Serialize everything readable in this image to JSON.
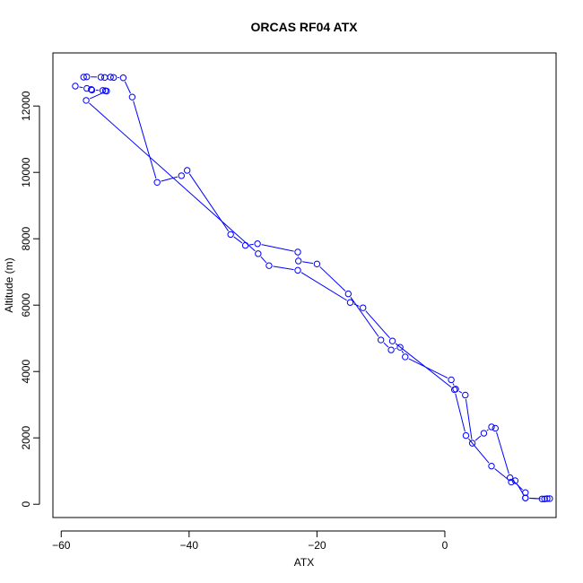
{
  "chart_data": {
    "type": "line",
    "title": "ORCAS RF04 ATX",
    "xlabel": "ATX",
    "ylabel": "Altitude (m)",
    "xlim": [
      -61.3,
      17.4
    ],
    "ylim": [
      -400,
      13600
    ],
    "x_ticks": [
      -60,
      -40,
      -20,
      0
    ],
    "y_ticks": [
      0,
      2000,
      4000,
      6000,
      8000,
      10000,
      12000
    ],
    "x_tick_labels": [
      "−60",
      "−40",
      "−20",
      "0"
    ],
    "y_tick_labels": [
      "0",
      "2000",
      "4000",
      "6000",
      "8000",
      "10000",
      "12000"
    ],
    "grid": false,
    "legend": "none",
    "series_color": "#0000ff",
    "marker": "open-circle",
    "line_style": "solid",
    "series": [
      {
        "x": [
          -56.5,
          -56.0,
          -53.8,
          -53.2,
          -52.3,
          -51.8,
          -50.3,
          -48.9,
          -45.0,
          -41.2,
          -40.3,
          -33.5,
          -31.2,
          -29.3,
          -23.0,
          -22.9,
          -20.0,
          -15.1,
          -10.0,
          -8.4,
          -7.0,
          -6.2,
          1.0,
          1.7,
          3.2,
          4.3,
          6.1,
          7.3,
          7.9,
          10.2,
          12.6,
          12.6,
          15.2,
          16.0,
          16.4
        ],
        "y": [
          12870,
          12880,
          12870,
          12860,
          12870,
          12860,
          12850,
          12270,
          9700,
          9900,
          10060,
          8130,
          7800,
          7850,
          7600,
          7330,
          7240,
          6340,
          4950,
          4650,
          4730,
          4440,
          3750,
          3470,
          3290,
          1840,
          2140,
          2330,
          2290,
          800,
          350,
          190,
          160,
          170,
          170
        ]
      },
      {
        "x": [
          -57.8,
          -56.0,
          -55.3,
          -55.2,
          -53.5,
          -53.1,
          -52.9,
          -56.1,
          -29.2,
          -27.5,
          -23.0,
          -14.8,
          -12.8,
          -8.2,
          1.5,
          3.3,
          7.3,
          10.4,
          11.0,
          12.6,
          15.6
        ],
        "y": [
          12600,
          12530,
          12500,
          12480,
          12470,
          12460,
          12450,
          12170,
          7550,
          7190,
          7050,
          6080,
          5920,
          4920,
          3450,
          2070,
          1150,
          670,
          710,
          190,
          160
        ]
      }
    ]
  }
}
